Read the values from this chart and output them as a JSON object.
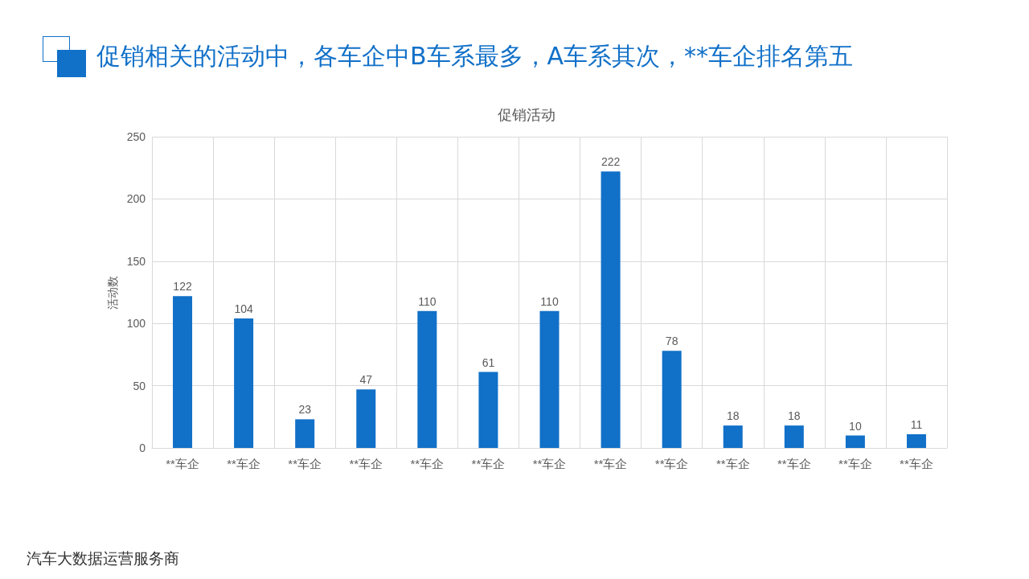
{
  "chart_data": {
    "type": "bar",
    "title": "促销活动",
    "subtitle": "促销相关的活动中，各车企中B车系最多，A车系其次，**车企排名第五",
    "ylabel": "活动数",
    "categories": [
      "**车企",
      "**车企",
      "**车企",
      "**车企",
      "**车企",
      "**车企",
      "**车企",
      "**车企",
      "**车企",
      "**车企",
      "**车企",
      "**车企",
      "**车企"
    ],
    "values": [
      122,
      104,
      23,
      47,
      110,
      61,
      110,
      222,
      78,
      18,
      18,
      10,
      11
    ],
    "color": "#1170c8",
    "ylim": [
      0,
      250
    ],
    "yticks": [
      0,
      50,
      100,
      150,
      200,
      250
    ],
    "grid": true,
    "data_labels": true,
    "annotations": [
      "汽车大数据运营服务商"
    ]
  }
}
